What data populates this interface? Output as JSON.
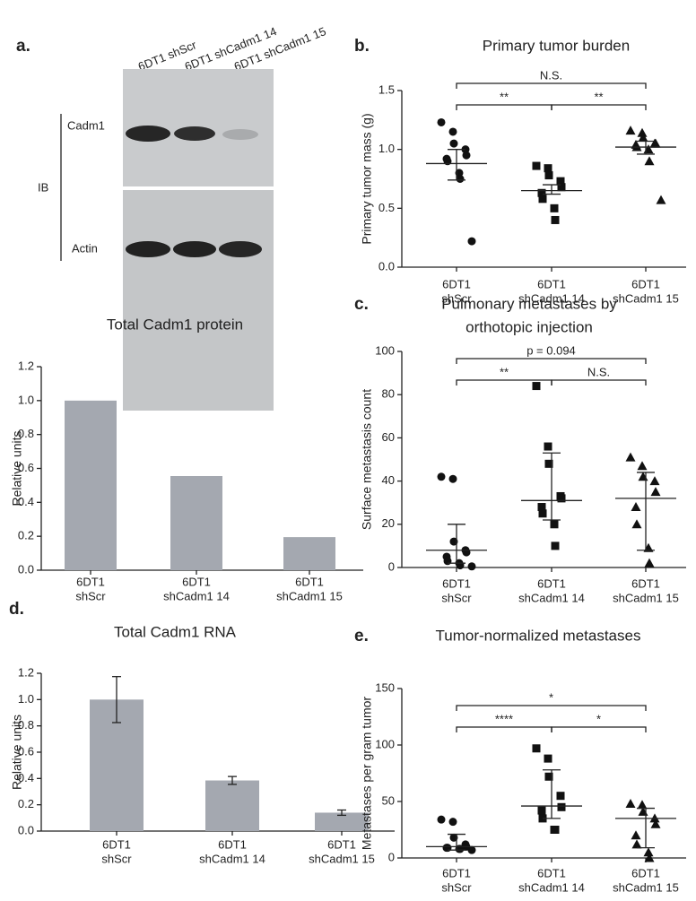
{
  "blot": {
    "panel": "a.",
    "lanes": [
      "6DT1 shScr",
      "6DT1 shCadm1 14",
      "6DT1 shCadm1 15"
    ],
    "rows": [
      "Cadm1",
      "Actin"
    ],
    "group_label": "IB"
  },
  "chart_data": [
    {
      "type": "bar",
      "title": "Total Cadm1 protein",
      "y_label": "Relative units",
      "categories": [
        [
          "6DT1",
          "shScr"
        ],
        [
          "6DT1",
          "shCadm1 14"
        ],
        [
          "6DT1",
          "shCadm1 15"
        ]
      ],
      "values": [
        1.0,
        0.555,
        0.195
      ],
      "color": "#a4a8b0",
      "ylim": [
        0,
        1.2
      ],
      "yticks": [
        {
          "value": 0,
          "label": "0.0"
        },
        0.2,
        0.4,
        0.6,
        0.8,
        {
          "value": 1,
          "label": "1.0"
        },
        1.2
      ]
    },
    {
      "type": "dot",
      "panel": "b.",
      "title": "Primary tumor burden",
      "y_label": "Primary tumor mass (g)",
      "categories": [
        [
          "6DT1",
          "shScr"
        ],
        [
          "6DT1",
          "shCadm1 14"
        ],
        [
          "6DT1",
          "shCadm1 15"
        ]
      ],
      "color": "#111111",
      "groups": [
        {
          "marker": "circle",
          "values": [
            1.23,
            1.15,
            1.05,
            1.0,
            0.95,
            0.92,
            0.9,
            0.8,
            0.75,
            0.22
          ],
          "center": 0.88,
          "low": 0.74,
          "high": 1.0
        },
        {
          "marker": "square",
          "values": [
            0.86,
            0.84,
            0.78,
            0.73,
            0.68,
            0.63,
            0.58,
            0.5,
            0.4
          ],
          "center": 0.65,
          "low": 0.62,
          "high": 0.7
        },
        {
          "marker": "triangle",
          "values": [
            1.16,
            1.14,
            1.1,
            1.05,
            1.05,
            1.04,
            1.02,
            1.0,
            0.9,
            0.57
          ],
          "center": 1.02,
          "low": 0.96,
          "high": 1.07
        }
      ],
      "comparisons": [
        {
          "between": [
            0,
            2
          ],
          "label": "N.S."
        },
        {
          "between": [
            0,
            1
          ],
          "label": "**"
        },
        {
          "between": [
            1,
            2
          ],
          "label": "**"
        }
      ],
      "ylim": [
        0,
        1.5
      ],
      "yticks": [
        {
          "value": 0,
          "label": "0.0"
        },
        0.5,
        {
          "value": 1,
          "label": "1.0"
        },
        1.5
      ]
    },
    {
      "type": "dot",
      "panel": "c.",
      "title": [
        "Pulmonary metastases by",
        "orthotopic injection"
      ],
      "y_label": "Surface metastasis count",
      "categories": [
        [
          "6DT1",
          "shScr"
        ],
        [
          "6DT1",
          "shCadm1 14"
        ],
        [
          "6DT1",
          "shCadm1 15"
        ]
      ],
      "color": "#111111",
      "groups": [
        {
          "marker": "circle",
          "values": [
            42,
            41,
            12,
            8,
            7,
            5,
            3,
            2,
            1,
            0.5
          ],
          "center": 8,
          "low": 2,
          "high": 20
        },
        {
          "marker": "square",
          "values": [
            84,
            56,
            48,
            33,
            32,
            28,
            25,
            20,
            10
          ],
          "center": 31,
          "low": 22,
          "high": 53
        },
        {
          "marker": "triangle",
          "values": [
            51,
            47,
            42,
            40,
            35,
            28,
            20,
            9,
            2
          ],
          "center": 32,
          "low": 8,
          "high": 44
        }
      ],
      "comparisons": [
        {
          "between": [
            0,
            2
          ],
          "label": "p = 0.094"
        },
        {
          "between": [
            0,
            1
          ],
          "label": "**"
        },
        {
          "between": [
            1,
            2
          ],
          "label": "N.S."
        }
      ],
      "ylim": [
        0,
        100
      ],
      "yticks": [
        0,
        20,
        40,
        60,
        80,
        100
      ]
    },
    {
      "type": "bar",
      "panel": "d.",
      "title": "Total Cadm1 RNA",
      "y_label": "Relative units",
      "categories": [
        [
          "6DT1",
          "shScr"
        ],
        [
          "6DT1",
          "shCadm1 14"
        ],
        [
          "6DT1",
          "shCadm1 15"
        ]
      ],
      "values": [
        1.0,
        0.385,
        0.14
      ],
      "errors": [
        0.175,
        0.03,
        0.02
      ],
      "color": "#a4a8b0",
      "ylim": [
        0,
        1.2
      ],
      "yticks": [
        {
          "value": 0,
          "label": "0.0"
        },
        0.2,
        0.4,
        0.6,
        0.8,
        {
          "value": 1,
          "label": "1.0"
        },
        1.2
      ]
    },
    {
      "type": "dot",
      "panel": "e.",
      "title": "Tumor-normalized metastases",
      "y_label": "Metastases per gram tumor",
      "categories": [
        [
          "6DT1",
          "shScr"
        ],
        [
          "6DT1",
          "shCadm1 14"
        ],
        [
          "6DT1",
          "shCadm1 15"
        ]
      ],
      "color": "#111111",
      "groups": [
        {
          "marker": "circle",
          "values": [
            34,
            32,
            18,
            12,
            10,
            9,
            9,
            8,
            8,
            7
          ],
          "center": 10,
          "low": 7,
          "high": 21
        },
        {
          "marker": "square",
          "values": [
            97,
            88,
            72,
            55,
            45,
            42,
            35,
            25,
            25
          ],
          "center": 46,
          "low": 35,
          "high": 78
        },
        {
          "marker": "triangle",
          "values": [
            48,
            47,
            41,
            35,
            30,
            20,
            12,
            5,
            0
          ],
          "center": 35,
          "low": 9,
          "high": 44
        }
      ],
      "comparisons": [
        {
          "between": [
            0,
            2
          ],
          "label": "*"
        },
        {
          "between": [
            0,
            1
          ],
          "label": "****"
        },
        {
          "between": [
            1,
            2
          ],
          "label": "*"
        }
      ],
      "ylim": [
        0,
        150
      ],
      "yticks": [
        0,
        50,
        100,
        150
      ]
    }
  ]
}
